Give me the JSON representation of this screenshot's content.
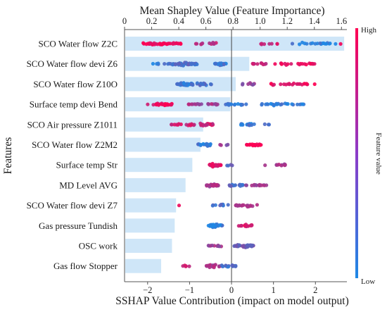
{
  "chart_data": {
    "type": "scatter",
    "title": "Mean Shapley Value (Feature Importance)",
    "xlabel": "SSHAP Value Contribution (impact on model output)",
    "ylabel": "Features",
    "colorbar": {
      "label": "Feature value",
      "high_label": "High",
      "low_label": "Low",
      "low_color": "#1e88e5",
      "high_color": "#ff0052"
    },
    "bar_axis": {
      "ticks": [
        0,
        0.2,
        0.4,
        0.6,
        0.8,
        1.0,
        1.2,
        1.4,
        1.6
      ],
      "tick_labels": [
        "0",
        "0.2",
        "0.4",
        "0.6",
        "0.8",
        "1.0",
        "1.2",
        "1.4",
        "1.6"
      ],
      "range": [
        0,
        1.64
      ]
    },
    "shap_axis": {
      "ticks": [
        -2,
        -1,
        0,
        1,
        2
      ],
      "tick_labels": [
        "−2",
        "−1",
        "0",
        "1",
        "2"
      ],
      "range": [
        -2.55,
        2.75
      ]
    },
    "bar_color": "#cfe6f8",
    "features": [
      {
        "name": "SCO Water flow Z2C",
        "importance": 1.62,
        "clusters": [
          {
            "min": -2.2,
            "max": -1.2,
            "center": -1.65,
            "value": 0.95,
            "count": 46,
            "spread": 0.34
          },
          {
            "min": -0.9,
            "max": -0.3,
            "center": -0.5,
            "value": 0.7,
            "count": 12,
            "spread": 0.3
          },
          {
            "min": 0.7,
            "max": 1.1,
            "center": 0.85,
            "value": 0.75,
            "count": 8,
            "spread": 0.3
          },
          {
            "min": 1.4,
            "max": 2.5,
            "center": 1.85,
            "value": 0.08,
            "count": 20,
            "spread": 0.35
          },
          {
            "min": 2.55,
            "max": 2.65,
            "center": 2.6,
            "value": 0.95,
            "count": 1,
            "spread": 0.1
          }
        ]
      },
      {
        "name": "SCO Water flow devi Z6",
        "importance": 0.92,
        "clusters": [
          {
            "min": -1.9,
            "max": -1.5,
            "center": -1.7,
            "value": 0.1,
            "count": 6,
            "spread": 0.25
          },
          {
            "min": -1.5,
            "max": -0.8,
            "center": -1.1,
            "value": 0.2,
            "count": 40,
            "spread": 0.42
          },
          {
            "min": -0.4,
            "max": -0.1,
            "center": -0.25,
            "value": 0.15,
            "count": 22,
            "spread": 0.35
          },
          {
            "min": 0.5,
            "max": 0.9,
            "center": 0.7,
            "value": 0.78,
            "count": 10,
            "spread": 0.25
          },
          {
            "min": 1.0,
            "max": 2.0,
            "center": 1.4,
            "value": 0.9,
            "count": 22,
            "spread": 0.3
          }
        ]
      },
      {
        "name": "SCO Water flow Z10O",
        "importance": 0.82,
        "clusters": [
          {
            "min": -1.3,
            "max": -0.9,
            "center": -1.05,
            "value": 0.12,
            "count": 38,
            "spread": 0.5
          },
          {
            "min": -0.85,
            "max": -0.45,
            "center": -0.65,
            "value": 0.22,
            "count": 16,
            "spread": 0.4
          },
          {
            "min": 0.25,
            "max": 0.6,
            "center": 0.4,
            "value": 0.5,
            "count": 8,
            "spread": 0.3
          },
          {
            "min": 0.8,
            "max": 2.0,
            "center": 1.2,
            "value": 0.92,
            "count": 24,
            "spread": 0.32
          }
        ]
      },
      {
        "name": "Surface temp devi Bend",
        "importance": 0.78,
        "clusters": [
          {
            "min": -2.0,
            "max": -1.3,
            "center": -1.55,
            "value": 0.9,
            "count": 24,
            "spread": 0.3
          },
          {
            "min": -1.05,
            "max": -0.3,
            "center": -0.6,
            "value": 0.6,
            "count": 20,
            "spread": 0.32
          },
          {
            "min": -0.15,
            "max": 0.35,
            "center": 0.1,
            "value": 0.15,
            "count": 16,
            "spread": 0.35
          },
          {
            "min": 0.7,
            "max": 1.75,
            "center": 1.1,
            "value": 0.08,
            "count": 26,
            "spread": 0.3
          }
        ]
      },
      {
        "name": "SCO Air pressure Z1011",
        "importance": 0.58,
        "clusters": [
          {
            "min": -1.45,
            "max": -0.35,
            "center": -0.75,
            "value": 0.78,
            "count": 36,
            "spread": 0.42
          },
          {
            "min": 0.2,
            "max": 0.5,
            "center": 0.35,
            "value": 0.08,
            "count": 14,
            "spread": 0.38
          },
          {
            "min": 0.4,
            "max": 0.9,
            "center": 0.55,
            "value": 0.15,
            "count": 6,
            "spread": 0.2
          }
        ]
      },
      {
        "name": "SCO Water flow Z2M2",
        "importance": 0.56,
        "clusters": [
          {
            "min": -0.8,
            "max": -0.5,
            "center": -0.65,
            "value": 0.1,
            "count": 18,
            "spread": 0.5
          },
          {
            "min": -0.3,
            "max": -0.05,
            "center": -0.15,
            "value": 0.5,
            "count": 4,
            "spread": 0.25
          },
          {
            "min": 0.35,
            "max": 0.75,
            "center": 0.55,
            "value": 0.98,
            "count": 20,
            "spread": 0.3
          }
        ]
      },
      {
        "name": "Surface temp Str",
        "importance": 0.5,
        "clusters": [
          {
            "min": -0.55,
            "max": -0.25,
            "center": -0.42,
            "value": 0.82,
            "count": 32,
            "spread": 0.5
          },
          {
            "min": -0.2,
            "max": 0.1,
            "center": -0.05,
            "value": 0.25,
            "count": 4,
            "spread": 0.25
          },
          {
            "min": 0.75,
            "max": 0.85,
            "center": 0.8,
            "value": 0.7,
            "count": 1,
            "spread": 0.1
          },
          {
            "min": 1.05,
            "max": 1.3,
            "center": 1.2,
            "value": 0.6,
            "count": 10,
            "spread": 0.35
          }
        ]
      },
      {
        "name": "MD Level AVG",
        "importance": 0.45,
        "clusters": [
          {
            "min": -0.6,
            "max": -0.3,
            "center": -0.45,
            "value": 0.6,
            "count": 28,
            "spread": 0.5
          },
          {
            "min": -0.05,
            "max": 0.3,
            "center": 0.1,
            "value": 0.2,
            "count": 14,
            "spread": 0.35
          },
          {
            "min": 0.3,
            "max": 0.85,
            "center": 0.55,
            "value": 0.55,
            "count": 16,
            "spread": 0.3
          }
        ]
      },
      {
        "name": "SCO Water flow devi Z7",
        "importance": 0.38,
        "clusters": [
          {
            "min": -1.3,
            "max": -1.2,
            "center": -1.25,
            "value": 0.9,
            "count": 1,
            "spread": 0.1
          },
          {
            "min": -0.45,
            "max": -0.05,
            "center": -0.25,
            "value": 0.2,
            "count": 10,
            "spread": 0.4
          },
          {
            "min": 0.1,
            "max": 0.65,
            "center": 0.35,
            "value": 0.62,
            "count": 22,
            "spread": 0.42
          }
        ]
      },
      {
        "name": "Gas pressure Tundish",
        "importance": 0.37,
        "clusters": [
          {
            "min": -0.55,
            "max": -0.2,
            "center": -0.4,
            "value": 0.08,
            "count": 28,
            "spread": 0.5
          },
          {
            "min": 0.15,
            "max": 0.5,
            "center": 0.35,
            "value": 0.85,
            "count": 14,
            "spread": 0.35
          }
        ]
      },
      {
        "name": "OSC work",
        "importance": 0.35,
        "clusters": [
          {
            "min": -0.55,
            "max": -0.2,
            "center": -0.35,
            "value": 0.55,
            "count": 12,
            "spread": 0.3
          },
          {
            "min": 0.05,
            "max": 0.55,
            "center": 0.25,
            "value": 0.35,
            "count": 30,
            "spread": 0.5
          }
        ]
      },
      {
        "name": "Gas flow Stopper",
        "importance": 0.27,
        "clusters": [
          {
            "min": -1.3,
            "max": -1.0,
            "center": -1.15,
            "value": 0.8,
            "count": 5,
            "spread": 0.25
          },
          {
            "min": -0.6,
            "max": -0.25,
            "center": -0.45,
            "value": 0.6,
            "count": 18,
            "spread": 0.4
          },
          {
            "min": -0.25,
            "max": 0.1,
            "center": -0.1,
            "value": 0.2,
            "count": 18,
            "spread": 0.4
          }
        ]
      }
    ]
  }
}
